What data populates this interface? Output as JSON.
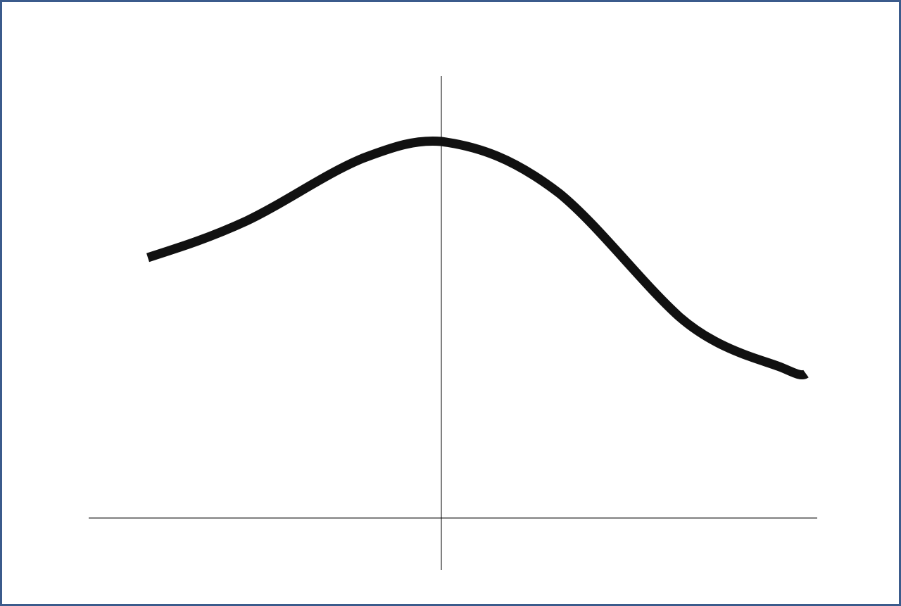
{
  "colors": {
    "border": "#3b5b8c",
    "curve": "#111111",
    "axes": "#000000",
    "background": "#ffffff"
  }
}
